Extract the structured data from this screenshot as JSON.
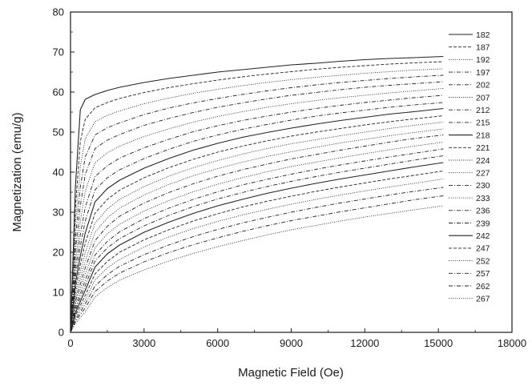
{
  "chart_data": {
    "type": "line",
    "title": "",
    "xlabel": "Magnetic Field (Oe)",
    "ylabel": "Magnetization (emu/g)",
    "xlim": [
      0,
      18000
    ],
    "ylim": [
      0,
      80
    ],
    "xticks": [
      "0",
      "3000",
      "6000",
      "9000",
      "12000",
      "15000",
      "18000"
    ],
    "yticks": [
      "0",
      "10",
      "20",
      "30",
      "40",
      "50",
      "60",
      "70",
      "80"
    ],
    "grid": false,
    "legend_position": "top-right",
    "x": [
      0,
      200,
      400,
      600,
      1000,
      1500,
      2000,
      3000,
      4000,
      5000,
      6000,
      7000,
      8000,
      9000,
      10000,
      11000,
      12000,
      13000,
      14000,
      15200
    ],
    "series": [
      {
        "name": "182",
        "style": "solid",
        "values": [
          0,
          36.4,
          55.6,
          58.2,
          59.4,
          60.4,
          61.2,
          62.4,
          63.4,
          64.2,
          65.0,
          65.6,
          66.2,
          66.8,
          67.2,
          67.7,
          68.1,
          68.4,
          68.6,
          68.9
        ]
      },
      {
        "name": "187",
        "style": "dashed",
        "values": [
          0,
          31.2,
          47.7,
          53.2,
          56.1,
          57.4,
          58.4,
          59.9,
          61.1,
          62.1,
          63.0,
          63.8,
          64.5,
          65.1,
          65.7,
          66.2,
          66.6,
          67.0,
          67.3,
          67.6
        ]
      },
      {
        "name": "192",
        "style": "dotted",
        "values": [
          0,
          27.2,
          41.4,
          48.4,
          52.6,
          54.2,
          55.3,
          57.1,
          58.5,
          59.7,
          60.7,
          61.6,
          62.4,
          63.1,
          63.7,
          64.2,
          64.7,
          65.1,
          65.5,
          65.8
        ]
      },
      {
        "name": "197",
        "style": "dashdot",
        "values": [
          0,
          23.6,
          36.3,
          43.8,
          49.3,
          51.1,
          52.3,
          54.4,
          56.0,
          57.3,
          58.4,
          59.4,
          60.3,
          61.1,
          61.8,
          62.4,
          62.9,
          63.4,
          63.8,
          64.2
        ]
      },
      {
        "name": "202",
        "style": "dashdot",
        "values": [
          0,
          20.5,
          31.6,
          39.4,
          45.9,
          48.0,
          49.4,
          51.7,
          53.4,
          54.9,
          56.2,
          57.3,
          58.3,
          59.2,
          59.9,
          60.6,
          61.2,
          61.7,
          62.1,
          62.6
        ]
      },
      {
        "name": "207",
        "style": "dotted",
        "values": [
          0,
          18.0,
          27.7,
          35.2,
          42.4,
          44.8,
          46.5,
          48.9,
          50.8,
          52.5,
          53.9,
          55.1,
          56.2,
          57.1,
          57.9,
          58.6,
          59.2,
          59.8,
          60.3,
          60.9
        ]
      },
      {
        "name": "212",
        "style": "dashdot",
        "values": [
          0,
          15.8,
          24.4,
          31.2,
          38.9,
          41.6,
          43.5,
          46.1,
          48.2,
          50.1,
          51.6,
          52.9,
          54.0,
          55.0,
          55.9,
          56.7,
          57.4,
          58.0,
          58.6,
          59.2
        ]
      },
      {
        "name": "215",
        "style": "dashdot",
        "values": [
          0,
          13.9,
          21.5,
          27.8,
          35.6,
          38.6,
          40.6,
          43.4,
          45.7,
          47.7,
          49.3,
          50.7,
          51.9,
          53.0,
          54.0,
          54.8,
          55.5,
          56.2,
          56.8,
          57.4
        ]
      },
      {
        "name": "218",
        "style": "solid",
        "values": [
          0,
          12.3,
          19.0,
          24.8,
          32.6,
          35.9,
          38.0,
          41.0,
          43.4,
          45.5,
          47.2,
          48.7,
          49.9,
          51.0,
          52.0,
          52.9,
          53.7,
          54.5,
          55.1,
          55.9
        ]
      },
      {
        "name": "221",
        "style": "dashed",
        "values": [
          0,
          10.9,
          16.9,
          22.2,
          29.8,
          33.2,
          35.5,
          38.6,
          41.1,
          43.2,
          45.0,
          46.5,
          47.8,
          49.0,
          50.0,
          50.9,
          51.8,
          52.6,
          53.3,
          54.1
        ]
      },
      {
        "name": "224",
        "style": "dotted",
        "values": [
          0,
          9.7,
          15.0,
          19.9,
          27.3,
          30.8,
          33.2,
          36.4,
          39.0,
          41.1,
          42.9,
          44.5,
          45.9,
          47.1,
          48.1,
          49.1,
          50.0,
          50.9,
          51.7,
          52.5
        ]
      },
      {
        "name": "227",
        "style": "dotted",
        "values": [
          0,
          8.6,
          13.4,
          17.8,
          25.0,
          28.6,
          31.0,
          34.3,
          36.9,
          39.1,
          40.9,
          42.5,
          43.9,
          45.1,
          46.2,
          47.3,
          48.2,
          49.1,
          49.9,
          50.8
        ]
      },
      {
        "name": "230",
        "style": "dashdot",
        "values": [
          0,
          7.7,
          12.0,
          16.1,
          22.9,
          26.5,
          29.0,
          32.3,
          34.9,
          37.1,
          39.0,
          40.6,
          42.0,
          43.3,
          44.4,
          45.5,
          46.5,
          47.5,
          48.4,
          49.3
        ]
      },
      {
        "name": "233",
        "style": "dotted",
        "values": [
          0,
          6.9,
          10.8,
          14.5,
          21.1,
          24.6,
          27.0,
          30.3,
          32.9,
          35.1,
          37.0,
          38.6,
          40.1,
          41.4,
          42.5,
          43.6,
          44.6,
          45.6,
          46.5,
          47.5
        ]
      },
      {
        "name": "236",
        "style": "dashdot",
        "values": [
          0,
          6.1,
          9.6,
          13.0,
          19.3,
          22.7,
          25.1,
          28.4,
          31.0,
          33.2,
          35.1,
          36.8,
          38.2,
          39.5,
          40.7,
          41.8,
          42.8,
          43.8,
          44.7,
          45.8
        ]
      },
      {
        "name": "239",
        "style": "dashdot",
        "values": [
          0,
          5.4,
          8.6,
          11.7,
          17.8,
          21.1,
          23.4,
          26.6,
          29.2,
          31.4,
          33.3,
          34.9,
          36.4,
          37.7,
          38.9,
          40.0,
          41.0,
          42.0,
          43.0,
          44.1
        ]
      },
      {
        "name": "242",
        "style": "solid",
        "values": [
          0,
          4.8,
          7.7,
          10.5,
          16.3,
          19.6,
          21.8,
          25.0,
          27.5,
          29.7,
          31.6,
          33.2,
          34.7,
          36.0,
          37.2,
          38.3,
          39.3,
          40.3,
          41.3,
          42.4
        ]
      },
      {
        "name": "247",
        "style": "dashed",
        "values": [
          0,
          4.2,
          6.7,
          9.2,
          14.6,
          17.7,
          20.0,
          23.1,
          25.6,
          27.8,
          29.6,
          31.3,
          32.7,
          34.0,
          35.2,
          36.3,
          37.3,
          38.3,
          39.2,
          40.3
        ]
      },
      {
        "name": "252",
        "style": "dotted",
        "values": [
          0,
          3.6,
          5.9,
          8.1,
          13.1,
          16.1,
          18.2,
          21.3,
          23.8,
          25.9,
          27.7,
          29.3,
          30.7,
          32.0,
          33.2,
          34.3,
          35.3,
          36.3,
          37.2,
          38.3
        ]
      },
      {
        "name": "257",
        "style": "dashdot",
        "values": [
          0,
          3.1,
          5.1,
          7.1,
          11.6,
          14.4,
          16.5,
          19.4,
          21.8,
          23.9,
          25.7,
          27.3,
          28.7,
          30.0,
          31.2,
          32.3,
          33.3,
          34.3,
          35.2,
          36.2
        ]
      },
      {
        "name": "262",
        "style": "dashdot",
        "values": [
          0,
          2.7,
          4.4,
          6.1,
          10.2,
          12.8,
          14.8,
          17.6,
          19.9,
          21.9,
          23.6,
          25.2,
          26.6,
          27.9,
          29.0,
          30.1,
          31.1,
          32.1,
          33.1,
          34.1
        ]
      },
      {
        "name": "267",
        "style": "dotted",
        "values": [
          0,
          2.2,
          3.7,
          5.1,
          8.8,
          11.2,
          13.0,
          15.6,
          17.8,
          19.7,
          21.4,
          22.9,
          24.3,
          25.6,
          26.7,
          27.8,
          28.8,
          29.7,
          30.6,
          31.6
        ]
      }
    ]
  }
}
